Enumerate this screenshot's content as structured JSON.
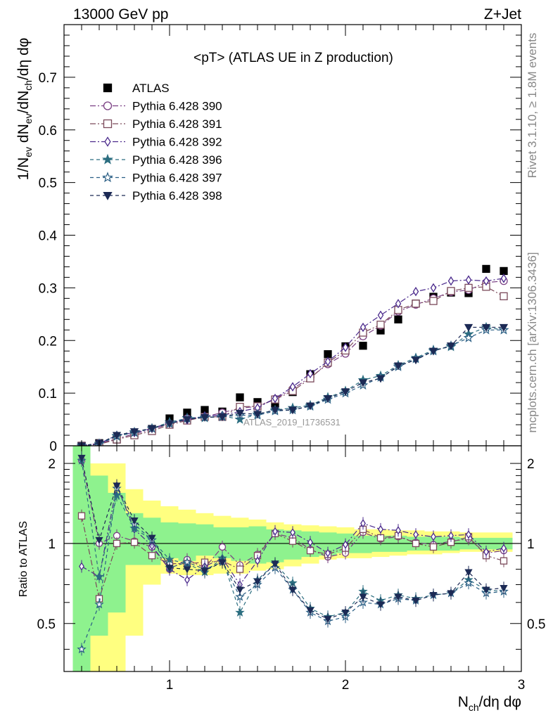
{
  "header": {
    "energy_label": "13000 GeV pp",
    "process_label": "Z+Jet",
    "rivet_label": "Rivet 3.1.10, ≥ 1.8M events",
    "mcplots_label": "mcplots.cern.ch [arXiv:1306.3436]",
    "analysis_id": "ATLAS_2019_I1736531"
  },
  "chart_data": [
    {
      "type": "scatter",
      "panel": "main",
      "title": "<pT> (ATLAS UE in Z production)",
      "xlabel": "N_ch/dη dφ",
      "ylabel": "1/N_ev dN_ev/dN_ch/dη dφ",
      "xlim": [
        0.4,
        3.0
      ],
      "ylim": [
        0,
        0.8
      ],
      "yticks": [
        0,
        0.1,
        0.2,
        0.3,
        0.4,
        0.5,
        0.6,
        0.7
      ],
      "ytick_labels": [
        "0",
        "0.1",
        "0.2",
        "0.3",
        "0.4",
        "0.5",
        "0.6",
        "0.7"
      ],
      "legend_position": "top-left",
      "x": [
        0.5,
        0.6,
        0.7,
        0.8,
        0.9,
        1.0,
        1.1,
        1.2,
        1.3,
        1.4,
        1.5,
        1.6,
        1.7,
        1.8,
        1.9,
        2.0,
        2.1,
        2.2,
        2.3,
        2.4,
        2.5,
        2.6,
        2.7,
        2.8,
        2.9
      ],
      "series": [
        {
          "name": "ATLAS",
          "color": "#000000",
          "marker": "filled-square",
          "dash": "none",
          "values": [
            0.0,
            0.005,
            0.012,
            0.022,
            0.032,
            0.052,
            0.063,
            0.068,
            0.065,
            0.092,
            0.083,
            0.081,
            0.102,
            0.136,
            0.174,
            0.189,
            0.19,
            0.219,
            0.24,
            0.27,
            0.283,
            0.291,
            0.29,
            0.336,
            0.332
          ]
        },
        {
          "name": "Pythia 6.428 390",
          "color": "#7a3f83",
          "marker": "open-circle",
          "dash": "8,3,2,3",
          "values": [
            0.0,
            0.005,
            0.013,
            0.023,
            0.031,
            0.042,
            0.052,
            0.055,
            0.063,
            0.071,
            0.075,
            0.089,
            0.108,
            0.13,
            0.155,
            0.175,
            0.208,
            0.228,
            0.255,
            0.268,
            0.28,
            0.292,
            0.296,
            0.31,
            0.313
          ]
        },
        {
          "name": "Pythia 6.428 391",
          "color": "#7b4a5b",
          "marker": "open-square",
          "dash": "8,3,2,3",
          "values": [
            0.0,
            0.003,
            0.012,
            0.02,
            0.028,
            0.04,
            0.048,
            0.055,
            0.055,
            0.074,
            0.075,
            0.088,
            0.104,
            0.128,
            0.158,
            0.181,
            0.215,
            0.23,
            0.258,
            0.27,
            0.275,
            0.294,
            0.3,
            0.302,
            0.284
          ]
        },
        {
          "name": "Pythia 6.428 392",
          "color": "#4b2a8c",
          "marker": "open-diamond",
          "dash": "8,3,2,3",
          "values": [
            0.0,
            0.004,
            0.02,
            0.025,
            0.033,
            0.044,
            0.049,
            0.057,
            0.058,
            0.065,
            0.072,
            0.09,
            0.112,
            0.137,
            0.16,
            0.187,
            0.225,
            0.248,
            0.27,
            0.293,
            0.3,
            0.313,
            0.315,
            0.313,
            0.318
          ]
        },
        {
          "name": "Pythia 6.428 396",
          "color": "#2c6e80",
          "marker": "filled-star",
          "dash": "5,4",
          "values": [
            0.0,
            0.004,
            0.018,
            0.025,
            0.033,
            0.045,
            0.052,
            0.053,
            0.057,
            0.05,
            0.06,
            0.068,
            0.072,
            0.077,
            0.092,
            0.104,
            0.125,
            0.133,
            0.153,
            0.167,
            0.182,
            0.188,
            0.212,
            0.225,
            0.22
          ]
        },
        {
          "name": "Pythia 6.428 397",
          "color": "#2b5f85",
          "marker": "open-star",
          "dash": "5,4",
          "values": [
            0.0,
            0.003,
            0.019,
            0.026,
            0.033,
            0.042,
            0.053,
            0.054,
            0.055,
            0.058,
            0.058,
            0.066,
            0.068,
            0.075,
            0.088,
            0.1,
            0.115,
            0.13,
            0.15,
            0.165,
            0.18,
            0.19,
            0.205,
            0.22,
            0.22
          ]
        },
        {
          "name": "Pythia 6.428 398",
          "color": "#1c2a55",
          "marker": "filled-triangle-down",
          "dash": "5,4",
          "values": [
            0.0,
            0.005,
            0.02,
            0.027,
            0.033,
            0.042,
            0.05,
            0.054,
            0.055,
            0.062,
            0.06,
            0.068,
            0.068,
            0.076,
            0.09,
            0.103,
            0.12,
            0.128,
            0.152,
            0.163,
            0.18,
            0.19,
            0.225,
            0.225,
            0.225
          ]
        }
      ]
    },
    {
      "type": "scatter",
      "panel": "ratio",
      "ylabel": "Ratio to ATLAS",
      "xlabel": "N_ch/dη dφ",
      "xlim": [
        0.4,
        3.0
      ],
      "ylim": [
        0.33,
        2.33
      ],
      "yscale": "log",
      "yticks": [
        0.5,
        1,
        2
      ],
      "ytick_labels": [
        "0.5",
        "1",
        "2"
      ],
      "xticks": [
        1,
        2,
        3
      ],
      "xtick_labels": [
        "1",
        "2",
        "3"
      ],
      "reference_line": 1,
      "x": [
        0.5,
        0.6,
        0.7,
        0.8,
        0.9,
        1.0,
        1.1,
        1.2,
        1.3,
        1.4,
        1.5,
        1.6,
        1.7,
        1.8,
        1.9,
        2.0,
        2.1,
        2.2,
        2.3,
        2.4,
        2.5,
        2.6,
        2.7,
        2.8,
        2.9
      ],
      "band_stat": {
        "name": "stat",
        "color": "#8ef28e",
        "lower": [
          0.3,
          0.45,
          0.55,
          0.83,
          0.83,
          0.88,
          0.86,
          0.9,
          0.88,
          0.86,
          0.84,
          0.85,
          0.87,
          0.89,
          0.9,
          0.92,
          0.92,
          0.93,
          0.93,
          0.94,
          0.94,
          0.94,
          0.95,
          0.95,
          0.95
        ],
        "upper": [
          3.0,
          1.8,
          1.55,
          1.3,
          1.25,
          1.2,
          1.19,
          1.18,
          1.15,
          1.15,
          1.16,
          1.13,
          1.12,
          1.11,
          1.1,
          1.09,
          1.07,
          1.07,
          1.07,
          1.06,
          1.06,
          1.06,
          1.05,
          1.05,
          1.05
        ]
      },
      "band_syst": {
        "name": "stat+syst",
        "color": "#ffff80",
        "lower": [
          0.3,
          0.33,
          0.33,
          0.45,
          0.7,
          0.77,
          0.76,
          0.76,
          0.77,
          0.77,
          0.79,
          0.8,
          0.82,
          0.84,
          0.87,
          0.88,
          0.88,
          0.89,
          0.9,
          0.91,
          0.91,
          0.92,
          0.93,
          0.93,
          0.93
        ],
        "upper": [
          3.0,
          2.0,
          2.0,
          1.6,
          1.45,
          1.38,
          1.34,
          1.3,
          1.27,
          1.25,
          1.23,
          1.2,
          1.18,
          1.17,
          1.16,
          1.15,
          1.13,
          1.13,
          1.12,
          1.12,
          1.11,
          1.11,
          1.1,
          1.1,
          1.1
        ]
      },
      "series": [
        {
          "name": "Pythia 6.428 390",
          "color": "#7a3f83",
          "marker": "open-circle",
          "dash": "8,3,2,3",
          "values": [
            2.05,
            1.0,
            1.07,
            1.02,
            0.97,
            0.8,
            0.87,
            0.81,
            0.97,
            0.83,
            0.91,
            1.09,
            1.05,
            0.95,
            0.89,
            0.92,
            1.1,
            1.04,
            1.06,
            1.01,
            0.99,
            1.02,
            1.04,
            0.92,
            0.94
          ]
        },
        {
          "name": "Pythia 6.428 391",
          "color": "#7b4a5b",
          "marker": "open-square",
          "dash": "8,3,2,3",
          "values": [
            1.27,
            0.62,
            1.0,
            1.01,
            0.9,
            0.84,
            0.84,
            0.85,
            0.86,
            0.8,
            0.9,
            1.09,
            1.02,
            0.94,
            0.91,
            0.96,
            1.13,
            1.05,
            1.07,
            1.0,
            0.97,
            1.01,
            1.06,
            0.9,
            0.86
          ]
        },
        {
          "name": "Pythia 6.428 392",
          "color": "#4b2a8c",
          "marker": "open-diamond",
          "dash": "8,3,2,3",
          "values": [
            0.82,
            0.75,
            1.65,
            1.13,
            0.98,
            0.8,
            0.73,
            0.82,
            0.88,
            0.7,
            0.86,
            1.11,
            1.1,
            1.01,
            0.92,
            0.99,
            1.19,
            1.13,
            1.12,
            1.08,
            1.06,
            1.07,
            1.08,
            0.93,
            0.96
          ]
        },
        {
          "name": "Pythia 6.428 396",
          "color": "#2c6e80",
          "marker": "filled-star",
          "dash": "5,4",
          "values": [
            2.05,
            0.75,
            1.52,
            1.14,
            1.03,
            0.87,
            0.84,
            0.78,
            0.88,
            0.55,
            0.73,
            0.84,
            0.71,
            0.57,
            0.53,
            0.55,
            0.66,
            0.61,
            0.64,
            0.62,
            0.64,
            0.65,
            0.73,
            0.67,
            0.66
          ]
        },
        {
          "name": "Pythia 6.428 397",
          "color": "#2b5f85",
          "marker": "open-star",
          "dash": "5,4",
          "values": [
            0.4,
            0.59,
            1.61,
            1.18,
            1.03,
            0.81,
            0.85,
            0.8,
            0.85,
            0.63,
            0.7,
            0.81,
            0.67,
            0.55,
            0.51,
            0.53,
            0.6,
            0.59,
            0.62,
            0.61,
            0.64,
            0.65,
            0.71,
            0.65,
            0.66
          ]
        },
        {
          "name": "Pythia 6.428 398",
          "color": "#1c2a55",
          "marker": "filled-triangle-down",
          "dash": "5,4",
          "values": [
            2.1,
            1.03,
            1.65,
            1.22,
            1.05,
            0.81,
            0.8,
            0.79,
            0.85,
            0.67,
            0.72,
            0.84,
            0.67,
            0.56,
            0.52,
            0.55,
            0.63,
            0.59,
            0.63,
            0.61,
            0.64,
            0.65,
            0.78,
            0.67,
            0.68
          ]
        }
      ]
    }
  ]
}
